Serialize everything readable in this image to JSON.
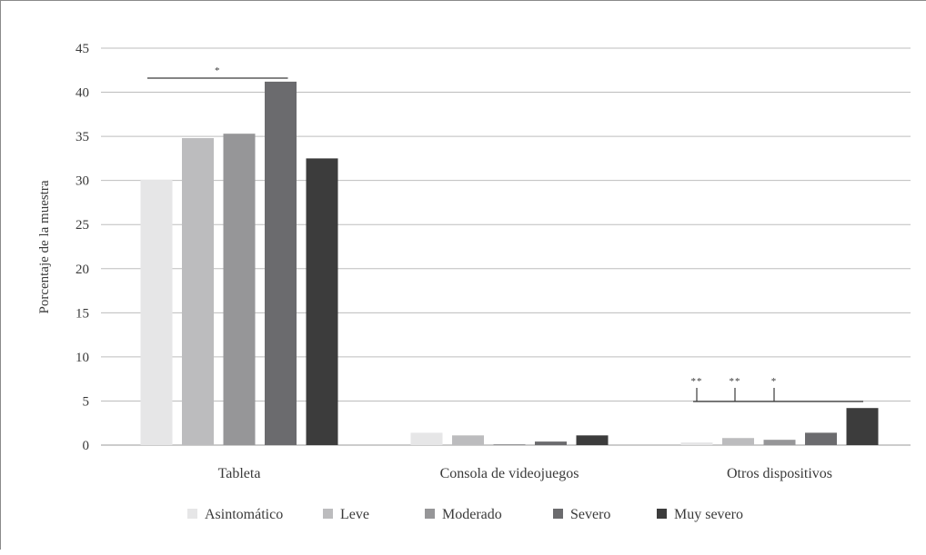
{
  "chart_data": {
    "type": "bar",
    "title": "",
    "xlabel": "",
    "ylabel": "Porcentaje de la muestra",
    "ylim": [
      0,
      45
    ],
    "yticks": [
      "0",
      "5",
      "10",
      "15",
      "20",
      "25",
      "30",
      "35",
      "40",
      "45"
    ],
    "grid": true,
    "legend_position": "bottom",
    "categories": [
      "Tableta",
      "Consola de videojuegos",
      "Otros dispositivos"
    ],
    "series": [
      {
        "name": "Asintomático",
        "color": "#e6e6e7",
        "values": [
          30.1,
          1.4,
          0.3
        ]
      },
      {
        "name": "Leve",
        "color": "#bcbcbe",
        "values": [
          34.8,
          1.1,
          0.8
        ]
      },
      {
        "name": "Moderado",
        "color": "#969698",
        "values": [
          35.3,
          0.1,
          0.6
        ]
      },
      {
        "name": "Severo",
        "color": "#6b6b6e",
        "values": [
          41.2,
          0.4,
          1.4
        ]
      },
      {
        "name": "Muy severo",
        "color": "#3c3c3c",
        "values": [
          32.5,
          1.1,
          4.2
        ]
      }
    ],
    "annotations": [
      {
        "label": "*",
        "category": "Tableta"
      },
      {
        "label": "**",
        "category": "Otros dispositivos"
      },
      {
        "label": "**",
        "category": "Otros dispositivos"
      },
      {
        "label": "*",
        "category": "Otros dispositivos"
      }
    ]
  }
}
